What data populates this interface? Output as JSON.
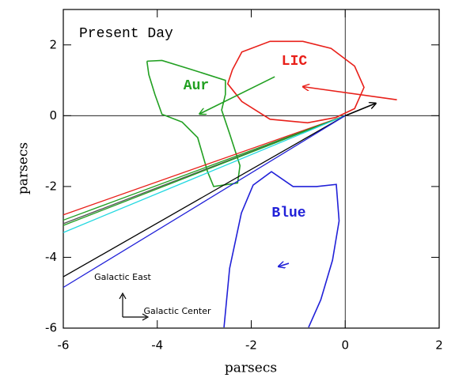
{
  "chart_data": {
    "type": "line",
    "xlabel": "parsecs",
    "ylabel": "parsecs",
    "xlim": [
      -6,
      2
    ],
    "ylim": [
      -6,
      3
    ],
    "xticks": [
      -6,
      -4,
      -2,
      0,
      2
    ],
    "yticks": [
      -6,
      -4,
      -2,
      0,
      2
    ],
    "zero_lines": true,
    "annotations": [
      {
        "text": "Present Day",
        "color": "#000000"
      },
      {
        "text": "LIC",
        "color": "#e8201a"
      },
      {
        "text": "Aur",
        "color": "#22a022"
      },
      {
        "text": "Blue",
        "color": "#2020d8"
      }
    ],
    "compass": [
      "Galactic East",
      "Galactic Center"
    ],
    "series": [
      {
        "color": "#e8201a",
        "x": [
          -2.4,
          -2.2,
          -1.6,
          -0.9,
          -0.3,
          0.2,
          0.4,
          0.2,
          -0.2,
          -0.8,
          -1.6,
          -2.2,
          -2.5,
          -2.4
        ],
        "y": [
          1.3,
          1.8,
          2.1,
          2.1,
          1.9,
          1.4,
          0.8,
          0.2,
          -0.05,
          -0.2,
          -0.1,
          0.4,
          0.9,
          1.3
        ]
      },
      {
        "color": "#22a022",
        "x": [
          -4.22,
          -3.9,
          -3.31,
          -2.55,
          -2.55,
          -2.63,
          -2.46,
          -2.24,
          -2.29,
          -2.8,
          -2.93,
          -3.14,
          -3.47,
          -3.9,
          -4.05,
          -4.18,
          -4.22
        ],
        "y": [
          1.54,
          1.56,
          1.32,
          1.0,
          0.6,
          0.16,
          -0.51,
          -1.41,
          -1.9,
          -2.0,
          -1.58,
          -0.62,
          -0.18,
          0.04,
          0.6,
          1.16,
          1.54
        ]
      },
      {
        "color": "#2020d8",
        "x": [
          -2.58,
          -2.46,
          -2.21,
          -1.96,
          -1.57,
          -1.11,
          -0.61,
          -0.19,
          -0.13,
          -0.27,
          -0.52,
          -0.78
        ],
        "y": [
          -5.98,
          -4.31,
          -2.75,
          -1.96,
          -1.58,
          -2.0,
          -2.0,
          -1.94,
          -2.97,
          -4.08,
          -5.2,
          -5.98
        ]
      },
      {
        "color": "#e8201a",
        "x": [
          0,
          -6
        ],
        "y": [
          0,
          -2.8
        ]
      },
      {
        "color": "#22a022",
        "x": [
          0,
          -6
        ],
        "y": [
          0,
          -2.95
        ]
      },
      {
        "color": "#555555",
        "x": [
          0,
          -6
        ],
        "y": [
          0,
          -3.05
        ]
      },
      {
        "color": "#22a022",
        "x": [
          0,
          -6
        ],
        "y": [
          0,
          -3.1
        ]
      },
      {
        "color": "#22d8e0",
        "x": [
          0,
          -6
        ],
        "y": [
          0,
          -3.3
        ]
      },
      {
        "color": "#000000",
        "x": [
          0,
          -6
        ],
        "y": [
          0,
          -4.55
        ]
      },
      {
        "color": "#2020d8",
        "x": [
          0,
          -6
        ],
        "y": [
          0,
          -4.85
        ]
      },
      {
        "color": "#e8201a",
        "arrow": true,
        "x": [
          1.1,
          -0.9
        ],
        "y": [
          0.45,
          0.82
        ]
      },
      {
        "color": "#22a022",
        "arrow": true,
        "x": [
          -1.5,
          -3.1
        ],
        "y": [
          1.1,
          0.05
        ]
      },
      {
        "color": "#000000",
        "arrow": true,
        "x": [
          0,
          0.65
        ],
        "y": [
          0,
          0.35
        ]
      },
      {
        "color": "#2020d8",
        "arrow": true,
        "x": [
          -1.2,
          -1.42
        ],
        "y": [
          -4.17,
          -4.26
        ]
      }
    ]
  }
}
